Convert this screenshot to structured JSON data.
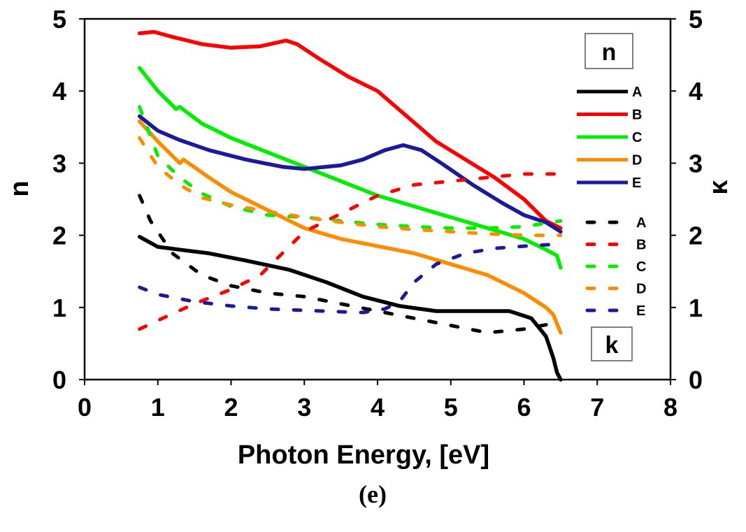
{
  "chart_data": {
    "type": "line",
    "title": "",
    "xlabel": "Photon Energy, [eV]",
    "ylabel_left": "n",
    "ylabel_right": "κ",
    "xlim": [
      0,
      8
    ],
    "ylim": [
      0,
      5
    ],
    "xticks": [
      "0",
      "1",
      "2",
      "3",
      "4",
      "5",
      "6",
      "7",
      "8"
    ],
    "yticks_left": [
      "0",
      "1",
      "2",
      "3",
      "4",
      "5"
    ],
    "yticks_right": [
      "0",
      "1",
      "2",
      "3",
      "4",
      "5"
    ],
    "grid": false,
    "legend_position": "right",
    "annotations": {
      "n_box": "n",
      "k_box": "k"
    },
    "caption": "(e)",
    "series": [
      {
        "name": "A",
        "group": "n",
        "style": "solid",
        "color": "#000000",
        "x": [
          0.75,
          1.0,
          1.3,
          1.7,
          2.2,
          2.8,
          3.3,
          3.8,
          4.3,
          4.8,
          5.3,
          5.8,
          6.1,
          6.3,
          6.4,
          6.45,
          6.5
        ],
        "y": [
          1.98,
          1.84,
          1.8,
          1.75,
          1.65,
          1.52,
          1.35,
          1.15,
          1.02,
          0.95,
          0.95,
          0.95,
          0.85,
          0.6,
          0.3,
          0.1,
          0.0
        ]
      },
      {
        "name": "B",
        "group": "n",
        "style": "solid",
        "color": "#ff0000",
        "x": [
          0.75,
          0.95,
          1.2,
          1.6,
          2.0,
          2.4,
          2.75,
          2.9,
          3.2,
          3.6,
          4.0,
          4.4,
          4.8,
          5.2,
          5.6,
          6.0,
          6.3,
          6.5
        ],
        "y": [
          4.8,
          4.82,
          4.75,
          4.65,
          4.6,
          4.62,
          4.7,
          4.65,
          4.45,
          4.2,
          4.0,
          3.65,
          3.3,
          3.05,
          2.8,
          2.5,
          2.2,
          2.1
        ]
      },
      {
        "name": "C",
        "group": "n",
        "style": "solid",
        "color": "#00ee00",
        "x": [
          0.75,
          1.0,
          1.25,
          1.3,
          1.6,
          2.0,
          2.5,
          3.0,
          3.5,
          4.0,
          4.5,
          5.0,
          5.5,
          6.0,
          6.3,
          6.45,
          6.5
        ],
        "y": [
          4.32,
          4.0,
          3.75,
          3.78,
          3.55,
          3.35,
          3.15,
          2.95,
          2.75,
          2.55,
          2.4,
          2.25,
          2.1,
          1.95,
          1.8,
          1.72,
          1.55
        ]
      },
      {
        "name": "D",
        "group": "n",
        "style": "solid",
        "color": "#ff8c00",
        "x": [
          0.75,
          1.0,
          1.3,
          1.35,
          1.7,
          2.0,
          2.5,
          3.0,
          3.5,
          4.0,
          4.5,
          5.0,
          5.5,
          6.0,
          6.3,
          6.4,
          6.5
        ],
        "y": [
          3.58,
          3.3,
          3.0,
          3.05,
          2.8,
          2.6,
          2.35,
          2.1,
          1.95,
          1.85,
          1.75,
          1.6,
          1.45,
          1.2,
          1.0,
          0.9,
          0.65
        ]
      },
      {
        "name": "E",
        "group": "n",
        "style": "solid",
        "color": "#1a1a9a",
        "x": [
          0.75,
          1.0,
          1.3,
          1.7,
          2.2,
          2.7,
          3.0,
          3.5,
          3.8,
          4.1,
          4.35,
          4.6,
          4.9,
          5.3,
          5.7,
          6.0,
          6.3,
          6.5
        ],
        "y": [
          3.65,
          3.45,
          3.32,
          3.18,
          3.05,
          2.95,
          2.92,
          2.97,
          3.05,
          3.18,
          3.25,
          3.18,
          2.98,
          2.7,
          2.45,
          2.28,
          2.18,
          2.05
        ]
      },
      {
        "name": "A",
        "group": "k",
        "style": "dotted",
        "color": "#000000",
        "x": [
          0.75,
          0.9,
          1.2,
          1.6,
          2.0,
          2.5,
          3.0,
          3.5,
          4.0,
          4.5,
          5.0,
          5.5,
          6.0,
          6.5
        ],
        "y": [
          2.55,
          2.2,
          1.75,
          1.45,
          1.3,
          1.2,
          1.15,
          1.05,
          0.95,
          0.85,
          0.75,
          0.65,
          0.7,
          0.8
        ]
      },
      {
        "name": "B",
        "group": "k",
        "style": "dotted",
        "color": "#ff0000",
        "x": [
          0.75,
          1.0,
          1.5,
          2.0,
          2.4,
          2.7,
          3.0,
          3.3,
          3.7,
          4.0,
          4.5,
          5.0,
          5.5,
          6.0,
          6.5
        ],
        "y": [
          0.7,
          0.82,
          1.05,
          1.25,
          1.45,
          1.75,
          2.05,
          2.2,
          2.4,
          2.55,
          2.7,
          2.75,
          2.8,
          2.85,
          2.85
        ]
      },
      {
        "name": "C",
        "group": "k",
        "style": "dotted",
        "color": "#00ee00",
        "x": [
          0.75,
          1.0,
          1.3,
          1.6,
          2.0,
          2.5,
          3.0,
          3.5,
          4.0,
          4.5,
          5.0,
          5.5,
          6.0,
          6.5
        ],
        "y": [
          3.78,
          3.1,
          2.8,
          2.58,
          2.4,
          2.28,
          2.25,
          2.2,
          2.15,
          2.12,
          2.1,
          2.1,
          2.12,
          2.2
        ]
      },
      {
        "name": "D",
        "group": "k",
        "style": "dotted",
        "color": "#ff8c00",
        "x": [
          0.75,
          1.0,
          1.3,
          1.6,
          2.0,
          2.5,
          3.0,
          3.5,
          4.0,
          4.5,
          5.0,
          5.5,
          6.0,
          6.5
        ],
        "y": [
          3.35,
          2.95,
          2.7,
          2.52,
          2.42,
          2.33,
          2.25,
          2.18,
          2.12,
          2.08,
          2.05,
          2.02,
          2.0,
          2.0
        ]
      },
      {
        "name": "E",
        "group": "k",
        "style": "dotted",
        "color": "#1a1a9a",
        "x": [
          0.75,
          1.0,
          1.5,
          2.0,
          2.5,
          3.0,
          3.5,
          3.8,
          4.1,
          4.3,
          4.5,
          4.8,
          5.2,
          5.6,
          6.0,
          6.5
        ],
        "y": [
          1.28,
          1.18,
          1.08,
          1.02,
          0.98,
          0.96,
          0.94,
          0.93,
          0.98,
          1.08,
          1.35,
          1.6,
          1.75,
          1.82,
          1.85,
          1.88
        ]
      }
    ]
  }
}
